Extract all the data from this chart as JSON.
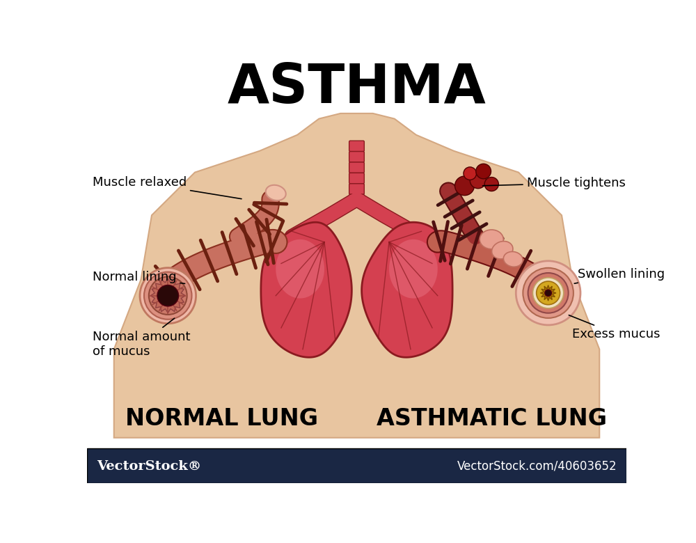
{
  "title": "ASTHMA",
  "title_fontsize": 56,
  "title_weight": "black",
  "bg_color": "#ffffff",
  "body_color": "#E8C5A0",
  "body_outline": "#D4A882",
  "footer_bg": "#1a2744",
  "footer_text_left": "VectorStock®",
  "footer_text_right": "VectorStock.com/40603652",
  "footer_fontsize": 14,
  "label_left_1": "Muscle relaxed",
  "label_left_2": "Normal lining",
  "label_left_3": "Normal amount\nof mucus",
  "label_right_1": "Muscle tightens",
  "label_right_2": "Swollen lining",
  "label_right_3": "Excess mucus",
  "caption_left": "NORMAL LUNG",
  "caption_right": "ASTHMATIC LUNG",
  "caption_fontsize": 24,
  "caption_weight": "black",
  "lung_color": "#D44050",
  "lung_light": "#E87080",
  "lung_dark": "#8B1A20",
  "trachea_color": "#D44050",
  "label_fontsize": 13
}
